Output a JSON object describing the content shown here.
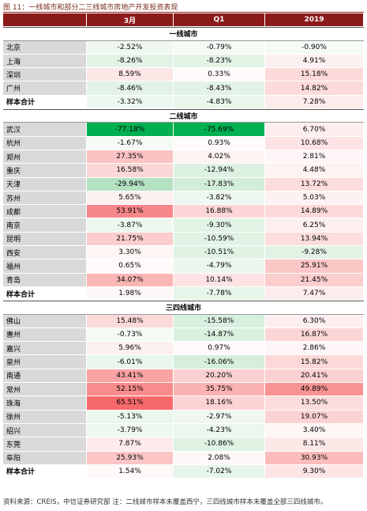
{
  "title": "图 11：一线城市和部分二三线城市房地产开发投资表现",
  "header": [
    "3月",
    "Q1",
    "2019"
  ],
  "sections": [
    {
      "name": "一线城市",
      "rows": [
        {
          "city": "北京",
          "cells": [
            "-2.52%",
            "-0.79%",
            "-0.90%"
          ],
          "fills": [
            "#eef8f0",
            "#f4fbf5",
            "#f4fbf5"
          ]
        },
        {
          "city": "上海",
          "cells": [
            "-8.26%",
            "-8.23%",
            "4.91%"
          ],
          "fills": [
            "#e2f3e6",
            "#e2f3e6",
            "#fdf0f0"
          ]
        },
        {
          "city": "深圳",
          "cells": [
            "8.59%",
            "0.33%",
            "15.18%"
          ],
          "fills": [
            "#fde6e6",
            "#fffafa",
            "#fcdada"
          ]
        },
        {
          "city": "广州",
          "cells": [
            "-8.46%",
            "-8.43%",
            "14.82%"
          ],
          "fills": [
            "#e2f3e6",
            "#e2f3e6",
            "#fcdada"
          ]
        }
      ],
      "total": {
        "label": "样本合计",
        "cells": [
          "-3.32%",
          "-4.83%",
          "7.28%"
        ],
        "fills": [
          "#eef8f0",
          "#eaf6ec",
          "#fdecec"
        ]
      }
    },
    {
      "name": "二线城市",
      "rows": [
        {
          "city": "武汉",
          "cells": [
            "-77.18%",
            "-75.69%",
            "6.70%"
          ],
          "fills": [
            "#00b050",
            "#03b152",
            "#fdeeee"
          ]
        },
        {
          "city": "杭州",
          "cells": [
            "-1.67%",
            "0.93%",
            "10.68%"
          ],
          "fills": [
            "#f4fbf5",
            "#fffafa",
            "#fde3e3"
          ]
        },
        {
          "city": "郑州",
          "cells": [
            "27.35%",
            "4.02%",
            "2.81%"
          ],
          "fills": [
            "#fbc3c3",
            "#fef3f3",
            "#fef6f6"
          ]
        },
        {
          "city": "重庆",
          "cells": [
            "16.58%",
            "-12.94%",
            "4.48%"
          ],
          "fills": [
            "#fcd7d7",
            "#ddf1e2",
            "#fef2f2"
          ]
        },
        {
          "city": "天津",
          "cells": [
            "-29.94%",
            "-17.83%",
            "13.72%"
          ],
          "fills": [
            "#b4e1c2",
            "#d3edda",
            "#fcdcdc"
          ]
        },
        {
          "city": "苏州",
          "cells": [
            "5.65%",
            "-3.82%",
            "5.03%"
          ],
          "fills": [
            "#fdf0f0",
            "#eef8f0",
            "#fef1f1"
          ]
        },
        {
          "city": "成都",
          "cells": [
            "53.91%",
            "16.88%",
            "14.89%"
          ],
          "fills": [
            "#f7878a",
            "#fcd6d6",
            "#fcdada"
          ]
        },
        {
          "city": "南京",
          "cells": [
            "-3.87%",
            "-9.30%",
            "6.25%"
          ],
          "fills": [
            "#eef8f0",
            "#e2f3e6",
            "#fdefef"
          ]
        },
        {
          "city": "昆明",
          "cells": [
            "21.75%",
            "-10.59%",
            "13.94%"
          ],
          "fills": [
            "#fbcdcd",
            "#e0f2e4",
            "#fcdcdc"
          ]
        },
        {
          "city": "西安",
          "cells": [
            "3.30%",
            "-10.51%",
            "-9.28%"
          ],
          "fills": [
            "#fef5f5",
            "#e0f2e4",
            "#e2f3e6"
          ]
        },
        {
          "city": "福州",
          "cells": [
            "0.65%",
            "-4.79%",
            "25.91%"
          ],
          "fills": [
            "#fffafa",
            "#ebf7ed",
            "#fbc6c6"
          ]
        },
        {
          "city": "青岛",
          "cells": [
            "34.07%",
            "10.14%",
            "21.45%"
          ],
          "fills": [
            "#fab5b5",
            "#fde3e3",
            "#fbcdcd"
          ]
        }
      ],
      "total": {
        "label": "样本合计",
        "cells": [
          "1.98%",
          "-7.78%",
          "7.47%"
        ],
        "fills": [
          "#fff8f8",
          "#e6f5e9",
          "#fdecec"
        ]
      }
    },
    {
      "name": "三四线城市",
      "rows": [
        {
          "city": "佛山",
          "cells": [
            "15.48%",
            "-15.58%",
            "6.30%"
          ],
          "fills": [
            "#fcd9d9",
            "#d8efdf",
            "#fdefef"
          ]
        },
        {
          "city": "惠州",
          "cells": [
            "-0.73%",
            "-14.87%",
            "16.87%"
          ],
          "fills": [
            "#f4fbf5",
            "#d9f0df",
            "#fcd6d6"
          ]
        },
        {
          "city": "嘉兴",
          "cells": [
            "5.96%",
            "0.97%",
            "2.86%"
          ],
          "fills": [
            "#fdf0f0",
            "#fffafa",
            "#fef6f6"
          ]
        },
        {
          "city": "泉州",
          "cells": [
            "-6.01%",
            "-16.06%",
            "15.82%"
          ],
          "fills": [
            "#e8f6eb",
            "#d6eedc",
            "#fcd8d8"
          ]
        },
        {
          "city": "南通",
          "cells": [
            "43.41%",
            "20.20%",
            "20.41%"
          ],
          "fills": [
            "#f9a3a3",
            "#fbd0d0",
            "#fbd0d0"
          ]
        },
        {
          "city": "常州",
          "cells": [
            "52.15%",
            "35.75%",
            "49.89%"
          ],
          "fills": [
            "#f88b8b",
            "#fab2b2",
            "#f99292"
          ]
        },
        {
          "city": "珠海",
          "cells": [
            "65.51%",
            "18.16%",
            "13.50%"
          ],
          "fills": [
            "#f8696b",
            "#fcd3d3",
            "#fcdcdc"
          ]
        },
        {
          "city": "徐州",
          "cells": [
            "-5.13%",
            "-2.97%",
            "19.07%"
          ],
          "fills": [
            "#eaf7ec",
            "#eef8f0",
            "#fbd2d2"
          ]
        },
        {
          "city": "绍兴",
          "cells": [
            "-3.79%",
            "-4.23%",
            "3.40%"
          ],
          "fills": [
            "#eef8f0",
            "#ecf7ee",
            "#fef5f5"
          ]
        },
        {
          "city": "东莞",
          "cells": [
            "7.87%",
            "-10.86%",
            "8.11%"
          ],
          "fills": [
            "#fdeaea",
            "#e0f2e4",
            "#fde8e8"
          ]
        },
        {
          "city": "阜阳",
          "cells": [
            "25.93%",
            "2.08%",
            "30.93%"
          ],
          "fills": [
            "#fbc6c6",
            "#fef8f8",
            "#fabcbc"
          ]
        }
      ],
      "total": {
        "label": "样本合计",
        "cells": [
          "1.54%",
          "-7.02%",
          "9.30%"
        ],
        "fills": [
          "#fff8f8",
          "#e6f5e9",
          "#fde5e5"
        ]
      }
    }
  ],
  "footnote": "资料来源：CREIS，中信证券研究部  注：二线城市样本未覆盖西宁，三四线城市样本未覆盖全部三四线城市。"
}
